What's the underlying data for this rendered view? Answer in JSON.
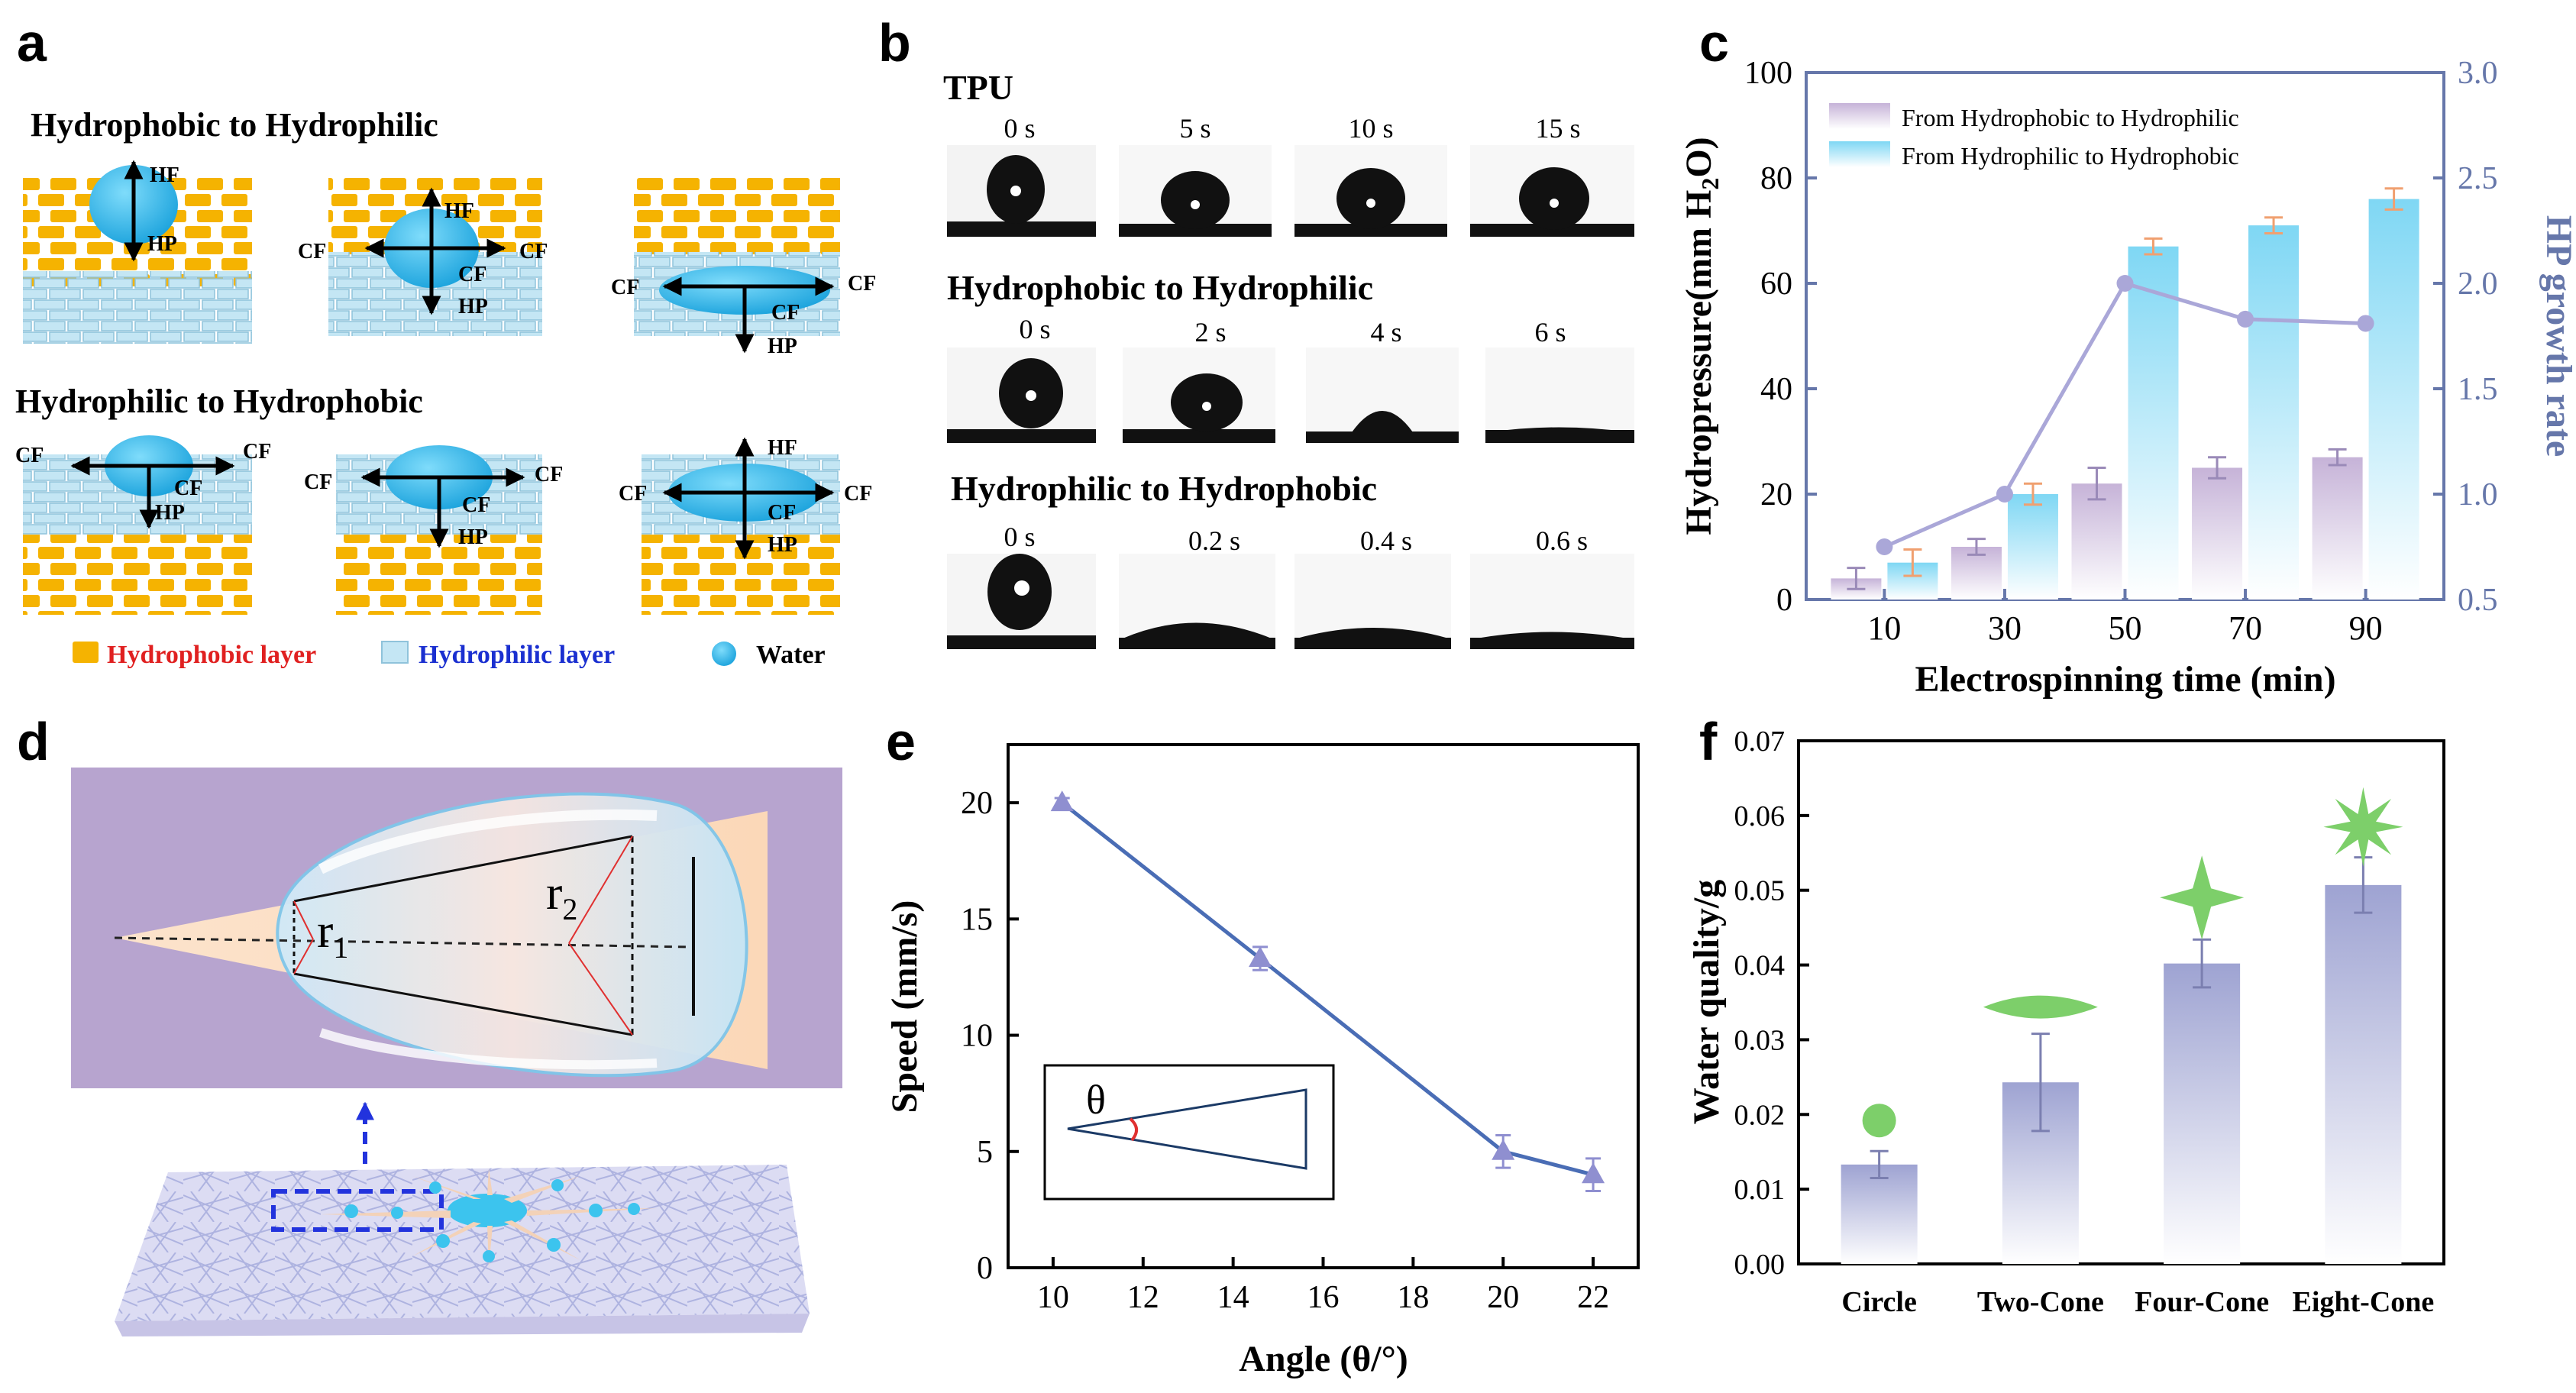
{
  "panel_labels": {
    "a": "a",
    "b": "b",
    "c": "c",
    "d": "d",
    "e": "e",
    "f": "f"
  },
  "panel_a": {
    "title_top": "Hydrophobic to Hydrophilic",
    "title_bottom": "Hydrophilic to Hydrophobic",
    "force_hf": "HF",
    "force_hp": "HP",
    "force_cf": "CF",
    "legend": {
      "hydrophobic": "Hydrophobic layer",
      "hydrophilic": "Hydrophilic layer",
      "water": "Water"
    },
    "colors": {
      "hydrophobic": "#f5b301",
      "hydrophilic": "#bfe3f3",
      "water": "#2bb5e8",
      "red_text": "#e02020",
      "blue_text": "#1a2fd0"
    }
  },
  "panel_b": {
    "rows": [
      {
        "title": "TPU",
        "times": [
          "0 s",
          "5 s",
          "10 s",
          "15 s"
        ]
      },
      {
        "title": "Hydrophobic to Hydrophilic",
        "times": [
          "0 s",
          "2 s",
          "4 s",
          "6 s"
        ]
      },
      {
        "title": "Hydrophilic to Hydrophobic",
        "times": [
          "0 s",
          "0.2 s",
          "0.4 s",
          "0.6 s"
        ]
      }
    ]
  },
  "panel_d": {
    "r1": "r",
    "r1_sub": "1",
    "r2": "r",
    "r2_sub": "2"
  },
  "chart_data": [
    {
      "id": "c",
      "type": "bar",
      "categories": [
        "10",
        "30",
        "50",
        "70",
        "90"
      ],
      "series": [
        {
          "name": "From Hydrophobic to Hydrophilic",
          "values": [
            4,
            10,
            22,
            25,
            27
          ],
          "errors": [
            2,
            1.5,
            3,
            2,
            1.5
          ],
          "color": "#c9b7d8"
        },
        {
          "name": "From Hydrophilic to Hydrophobic",
          "values": [
            7,
            20,
            67,
            71,
            76
          ],
          "errors": [
            2.5,
            2,
            1.5,
            1.5,
            2
          ],
          "color": "#8fdcf5"
        }
      ],
      "line": {
        "name": "HP growth rate",
        "values": [
          0.75,
          1.0,
          2.0,
          1.83,
          1.81
        ],
        "color": "#aaa7d8"
      },
      "xlabel": "Electrospinning time (min)",
      "ylabel": "Hydropressure(mm H",
      "ylabel_sub": "2",
      "ylabel_end": "O)",
      "y2label": "HP growth rate",
      "ylim": [
        0,
        100
      ],
      "yticks": [
        "0",
        "20",
        "40",
        "60",
        "80",
        "100"
      ],
      "y2lim": [
        0.5,
        3.0
      ],
      "y2ticks": [
        "0.5",
        "1.0",
        "1.5",
        "2.0",
        "2.5",
        "3.0"
      ],
      "legend_position": "top-left",
      "axis_color": "#6677aa"
    },
    {
      "id": "e",
      "type": "line",
      "x": [
        10.2,
        14.6,
        20,
        22
      ],
      "y": [
        20,
        13.3,
        5.0,
        4.0
      ],
      "errors": [
        0.2,
        0.5,
        0.7,
        0.7
      ],
      "xlabel": "Angle (θ/°)",
      "ylabel": "Speed (mm/s)",
      "xlim": [
        9,
        23
      ],
      "ylim": [
        0,
        22.5
      ],
      "xticks": [
        "10",
        "12",
        "14",
        "16",
        "18",
        "20",
        "22"
      ],
      "yticks": [
        "0",
        "5",
        "10",
        "15",
        "20"
      ],
      "inset_label": "θ",
      "line_color": "#4a6db5",
      "marker_color": "#8f8fd0"
    },
    {
      "id": "f",
      "type": "bar",
      "categories": [
        "Circle",
        "Two-Cone",
        "Four-Cone",
        "Eight-Cone"
      ],
      "values": [
        0.0133,
        0.0243,
        0.0402,
        0.0507
      ],
      "errors": [
        0.0018,
        0.0065,
        0.0032,
        0.0037
      ],
      "ylabel": "Water quality/g",
      "ylim": [
        0,
        0.07
      ],
      "yticks": [
        "0.00",
        "0.01",
        "0.02",
        "0.03",
        "0.04",
        "0.05",
        "0.06",
        "0.07"
      ],
      "bar_color": "#a8acd6",
      "marker_color": "#7dcf6a"
    }
  ]
}
